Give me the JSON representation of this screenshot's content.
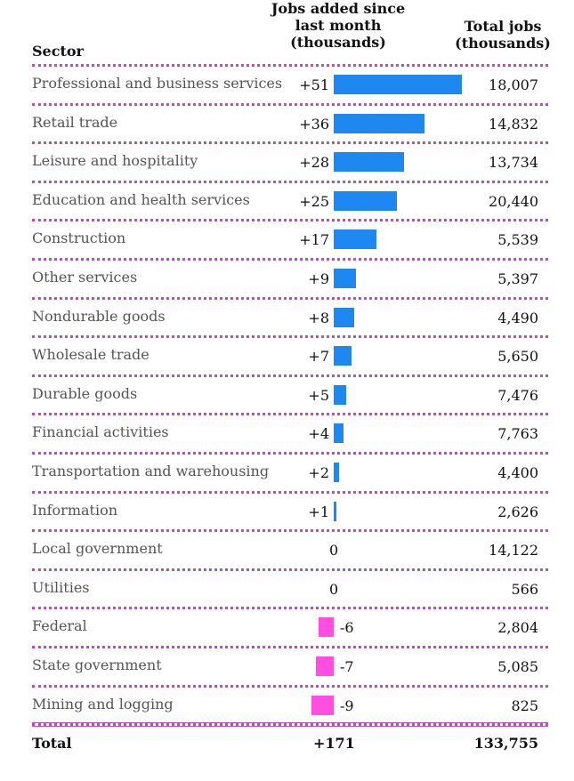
{
  "headers": {
    "sector": "Sector",
    "jobs_added": "Jobs added since last month (thousands)",
    "total_jobs": "Total jobs (thousands)"
  },
  "colors": {
    "positive": "#1e88f0",
    "negative": "#ff4fe0",
    "divider": "#b94fb7"
  },
  "chart_data": {
    "type": "table",
    "title": "",
    "columns": [
      "Sector",
      "Jobs added since last month (thousands)",
      "Total jobs (thousands)"
    ],
    "rows": [
      {
        "sector": "Professional and business services",
        "change": 51,
        "change_label": "+51",
        "total": "18,007"
      },
      {
        "sector": "Retail trade",
        "change": 36,
        "change_label": "+36",
        "total": "14,832"
      },
      {
        "sector": "Leisure and hospitality",
        "change": 28,
        "change_label": "+28",
        "total": "13,734"
      },
      {
        "sector": "Education and health services",
        "change": 25,
        "change_label": "+25",
        "total": "20,440"
      },
      {
        "sector": "Construction",
        "change": 17,
        "change_label": "+17",
        "total": "5,539"
      },
      {
        "sector": "Other services",
        "change": 9,
        "change_label": "+9",
        "total": "5,397"
      },
      {
        "sector": "Nondurable goods",
        "change": 8,
        "change_label": "+8",
        "total": "4,490"
      },
      {
        "sector": "Wholesale trade",
        "change": 7,
        "change_label": "+7",
        "total": "5,650"
      },
      {
        "sector": "Durable goods",
        "change": 5,
        "change_label": "+5",
        "total": "7,476"
      },
      {
        "sector": "Financial activities",
        "change": 4,
        "change_label": "+4",
        "total": "7,763"
      },
      {
        "sector": "Transportation and warehousing",
        "change": 2,
        "change_label": "+2",
        "total": "4,400"
      },
      {
        "sector": "Information",
        "change": 1,
        "change_label": "+1",
        "total": "2,626"
      },
      {
        "sector": "Local government",
        "change": 0,
        "change_label": "0",
        "total": "14,122"
      },
      {
        "sector": "Utilities",
        "change": 0,
        "change_label": "0",
        "total": "566"
      },
      {
        "sector": "Federal",
        "change": -6,
        "change_label": "-6",
        "total": "2,804"
      },
      {
        "sector": "State government",
        "change": -7,
        "change_label": "-7",
        "total": "5,085"
      },
      {
        "sector": "Mining and logging",
        "change": -9,
        "change_label": "-9",
        "total": "825"
      }
    ],
    "total": {
      "label": "Total",
      "change_label": "+171",
      "total": "133,755"
    }
  }
}
